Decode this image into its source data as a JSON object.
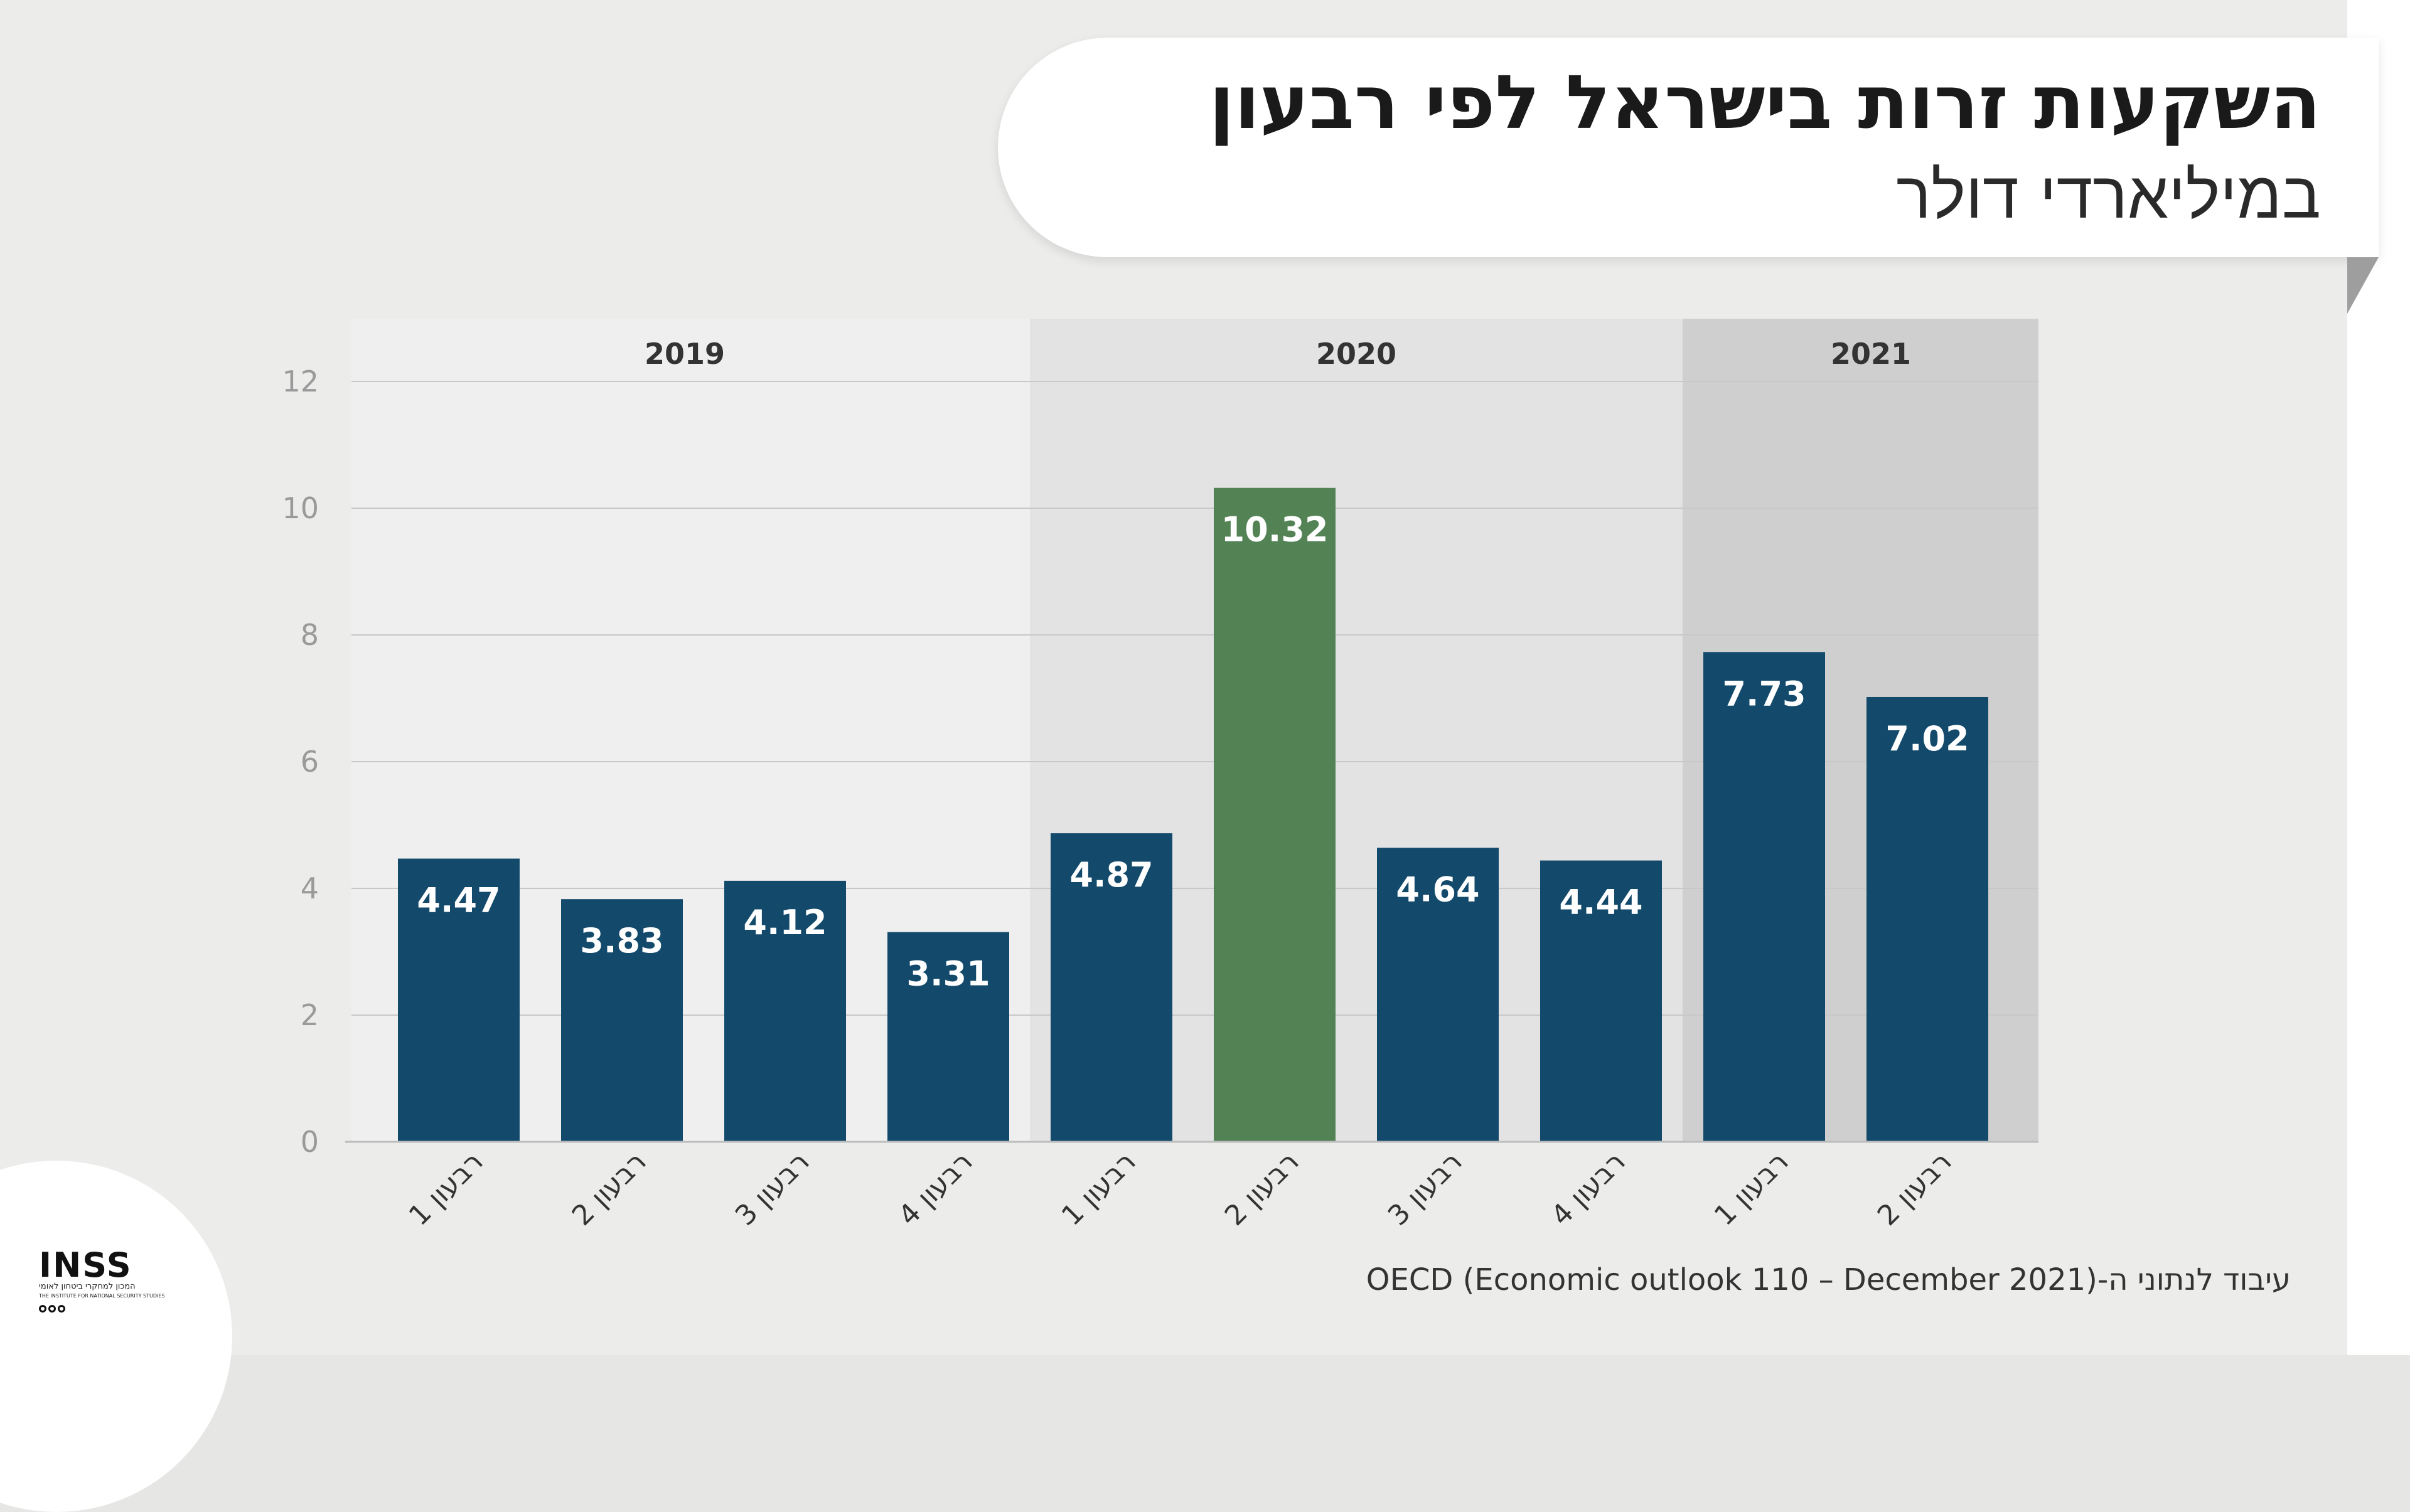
{
  "header": {
    "title": "השקעות זרות בישראל לפי רבעון",
    "subtitle": "במיליארדי דולר"
  },
  "source": "עיבוד לנתוני ה-OECD  (Economic outlook 110 – December 2021)",
  "logo": {
    "wordmark": "INSS",
    "hebrew_name": "המכון למחקרי ביטחון לאומי",
    "english_name": "THE INSTITUTE FOR NATIONAL SECURITY STUDIES"
  },
  "colors": {
    "bar": "#134a6b",
    "highlight_bar": "#538355",
    "band_2019": "#efefef",
    "band_2020": "#e3e3e3",
    "band_2021": "#cfcfcf",
    "grid": "#c8c8c8",
    "tick_text": "#9a9a9a"
  },
  "chart_data": {
    "type": "bar",
    "title": "השקעות זרות בישראל לפי רבעון",
    "subtitle": "במיליארדי דולר",
    "ylim": [
      0,
      12
    ],
    "yticks": [
      0,
      2,
      4,
      6,
      8,
      10,
      12
    ],
    "grid": true,
    "categories": [
      {
        "label": "רבעון 1",
        "year": "2019"
      },
      {
        "label": "רבעון 2",
        "year": "2019"
      },
      {
        "label": "רבעון 3",
        "year": "2019"
      },
      {
        "label": "רבעון 4",
        "year": "2019"
      },
      {
        "label": "רבעון 1",
        "year": "2020"
      },
      {
        "label": "רבעון 2",
        "year": "2020"
      },
      {
        "label": "רבעון 3",
        "year": "2020"
      },
      {
        "label": "רבעון 4",
        "year": "2020"
      },
      {
        "label": "רבעון 1",
        "year": "2021"
      },
      {
        "label": "רבעון 2",
        "year": "2021"
      }
    ],
    "values": [
      4.47,
      3.83,
      4.12,
      3.31,
      4.87,
      10.32,
      4.64,
      4.44,
      7.73,
      7.02
    ],
    "data_labels": [
      "4.47",
      "3.83",
      "4.12",
      "3.31",
      "4.87",
      "10.32",
      "4.64",
      "4.44",
      "7.73",
      "7.02"
    ],
    "highlight_index": 5,
    "year_groups": [
      {
        "year": "2019",
        "first": 0,
        "last": 3
      },
      {
        "year": "2020",
        "first": 4,
        "last": 7
      },
      {
        "year": "2021",
        "first": 8,
        "last": 9
      }
    ]
  }
}
